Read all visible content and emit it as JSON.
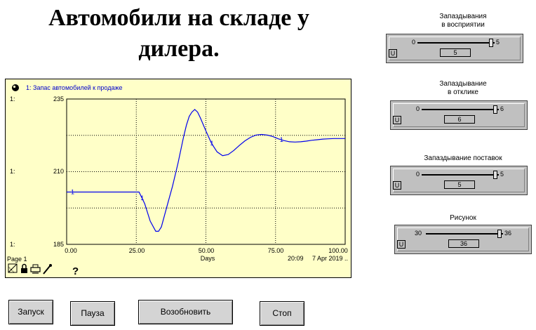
{
  "title_line1": "Автомобили на складе у",
  "title_line2": "дилера.",
  "graph": {
    "series_label": "1: Запас автомобилей к продаже",
    "y_axis_markers": [
      "1:",
      "1:",
      "1:"
    ],
    "y_ticks": [
      "235",
      "210",
      "185"
    ],
    "x_ticks": [
      "0.00",
      "25.00",
      "50.00",
      "75.00",
      "100.00"
    ],
    "x_label": "Days",
    "page": "Page 1",
    "time": "20:09",
    "date": "7 Apr 2019 ..",
    "help": "?",
    "series_marker": "1"
  },
  "chart_data": {
    "type": "line",
    "title": "1: Запас автомобилей к продаже",
    "xlabel": "Days",
    "ylabel": "",
    "xlim": [
      0,
      100
    ],
    "ylim": [
      185,
      235
    ],
    "grid": true,
    "series": [
      {
        "name": "1: Запас автомобилей к продаже",
        "x": [
          0,
          10,
          20,
          25,
          26,
          27,
          28,
          30,
          32,
          33,
          34,
          36,
          38,
          40,
          42,
          43,
          44,
          45,
          46,
          47,
          48,
          50,
          52,
          54,
          56,
          58,
          60,
          62,
          64,
          66,
          68,
          70,
          72,
          74,
          76,
          78,
          80,
          82,
          84,
          86,
          88,
          90,
          92,
          94,
          96,
          98,
          100
        ],
        "y": [
          203,
          203,
          203,
          203,
          203,
          201,
          199,
          193,
          189.5,
          189.5,
          191,
          198,
          205,
          213,
          222,
          226,
          229,
          230.5,
          231.4,
          230.5,
          228.5,
          224,
          219.8,
          216.8,
          215.5,
          215.9,
          217.3,
          219,
          220.6,
          221.8,
          222.6,
          222.8,
          222.6,
          222.1,
          221.3,
          220.7,
          220.3,
          220.2,
          220.3,
          220.5,
          220.8,
          221.0,
          221.2,
          221.3,
          221.4,
          221.4,
          221.4
        ]
      }
    ]
  },
  "sliders": [
    {
      "label": "Запаздывания\nв восприятии",
      "min": "0",
      "max": "5",
      "value": "5",
      "u": "U"
    },
    {
      "label": "Запаздывание\nв отклике",
      "min": "0",
      "max": "6",
      "value": "6",
      "u": "U"
    },
    {
      "label": "Запаздывание поставок",
      "min": "0",
      "max": "5",
      "value": "5",
      "u": "U"
    },
    {
      "label": "Рисунок",
      "min": "30",
      "max": "36",
      "value": "36",
      "u": "U"
    }
  ],
  "buttons": {
    "run": "Запуск",
    "pause": "Пауза",
    "resume": "Возобновить",
    "stop": "Стоп"
  }
}
